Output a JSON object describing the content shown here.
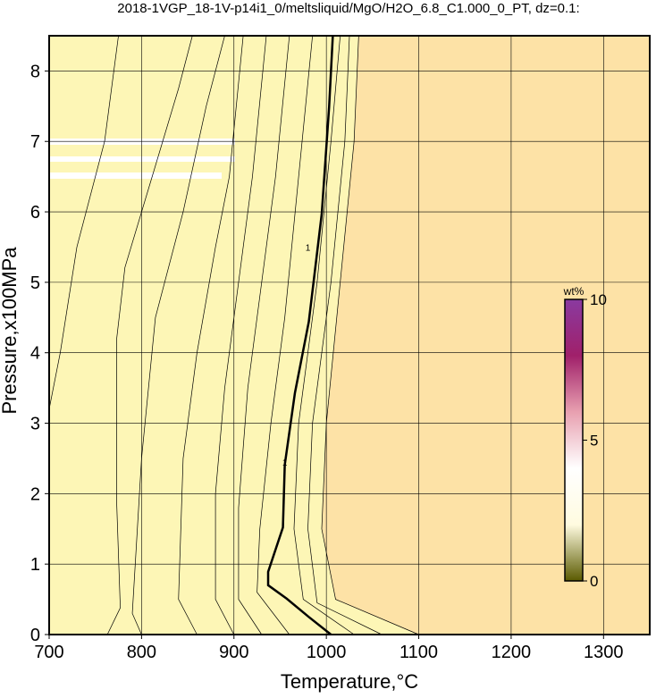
{
  "chart_data": {
    "type": "contour",
    "title": "2018-1VGP_18-1V-p14i1_0/meltsliquid/MgO/H2O_6.8_C1.000_0_PT, dz=0.1:",
    "xlabel": "Temperature,°C",
    "ylabel": "Pressure,x100MPa",
    "xlim": [
      700,
      1350
    ],
    "ylim": [
      0,
      8.5
    ],
    "xticks": [
      700,
      800,
      900,
      1000,
      1100,
      1200,
      1300
    ],
    "yticks": [
      0,
      1,
      2,
      3,
      4,
      5,
      6,
      7,
      8
    ],
    "grid": true,
    "fill_low": "#fdf6b6",
    "fill_high": "#fde2a6",
    "contours": [
      {
        "x": [
          700,
          712,
          730,
          760,
          775
        ],
        "y": [
          3.2,
          4,
          5.5,
          7,
          8.5
        ]
      },
      {
        "x": [
          763,
          777,
          773,
          773,
          782,
          811,
          840,
          855
        ],
        "y": [
          0,
          0.38,
          1.9,
          4.19,
          5.21,
          6.48,
          7.75,
          8.5
        ]
      },
      {
        "x": [
          800,
          790,
          800,
          815,
          845,
          870,
          890
        ],
        "y": [
          0,
          0.3,
          2.5,
          4.5,
          6,
          7.5,
          8.5
        ]
      },
      {
        "x": [
          860,
          840,
          845,
          860,
          880,
          895,
          910
        ],
        "y": [
          0,
          0.5,
          2.5,
          4,
          5.5,
          6.5,
          8.5
        ]
      },
      {
        "x": [
          900,
          880,
          880,
          890,
          905,
          920,
          935
        ],
        "y": [
          0,
          0.5,
          2,
          3.5,
          5,
          6.5,
          8.5
        ]
      },
      {
        "x": [
          930,
          905,
          905,
          915,
          930,
          945,
          960
        ],
        "y": [
          0,
          0.5,
          1.8,
          3.5,
          5,
          6.5,
          8.5
        ]
      },
      {
        "x": [
          960,
          925,
          928,
          940,
          955,
          970,
          985
        ],
        "y": [
          0,
          0.6,
          1.5,
          3,
          4.5,
          6.5,
          8.5
        ]
      },
      {
        "x": [
          1005,
          981,
          957,
          937,
          937,
          953,
          955,
          966,
          981,
          995,
          1003,
          1007
        ],
        "y": [
          0,
          0.25,
          0.51,
          0.7,
          0.89,
          1.52,
          2.41,
          3.43,
          4.44,
          5.97,
          7.49,
          8.5
        ],
        "bold": true
      },
      {
        "x": [
          1030,
          975,
          965,
          970,
          990,
          1005,
          1015
        ],
        "y": [
          0,
          0.5,
          1.5,
          3,
          5,
          7,
          8.5
        ]
      },
      {
        "x": [
          1060,
          990,
          980,
          985,
          1005,
          1020,
          1025
        ],
        "y": [
          0,
          0.45,
          1.5,
          3,
          5,
          7,
          8.5
        ]
      },
      {
        "x": [
          1100,
          1010,
          995,
          1000,
          1015,
          1030,
          1035
        ],
        "y": [
          0,
          0.5,
          1.5,
          3,
          5,
          7,
          8.5
        ]
      }
    ],
    "contour_labels": [
      {
        "text": "1",
        "x": 980,
        "y": 5.5
      },
      {
        "text": "1",
        "x": 955,
        "y": 2.45
      }
    ],
    "colorbar": {
      "label": "wt%",
      "lim": [
        0,
        10
      ],
      "ticks": [
        0,
        5,
        10
      ],
      "colors": [
        "#5a5a00",
        "#fffbe0",
        "#ffffff",
        "#e8a0b0",
        "#a0206a",
        "#8a3aa0"
      ]
    }
  }
}
